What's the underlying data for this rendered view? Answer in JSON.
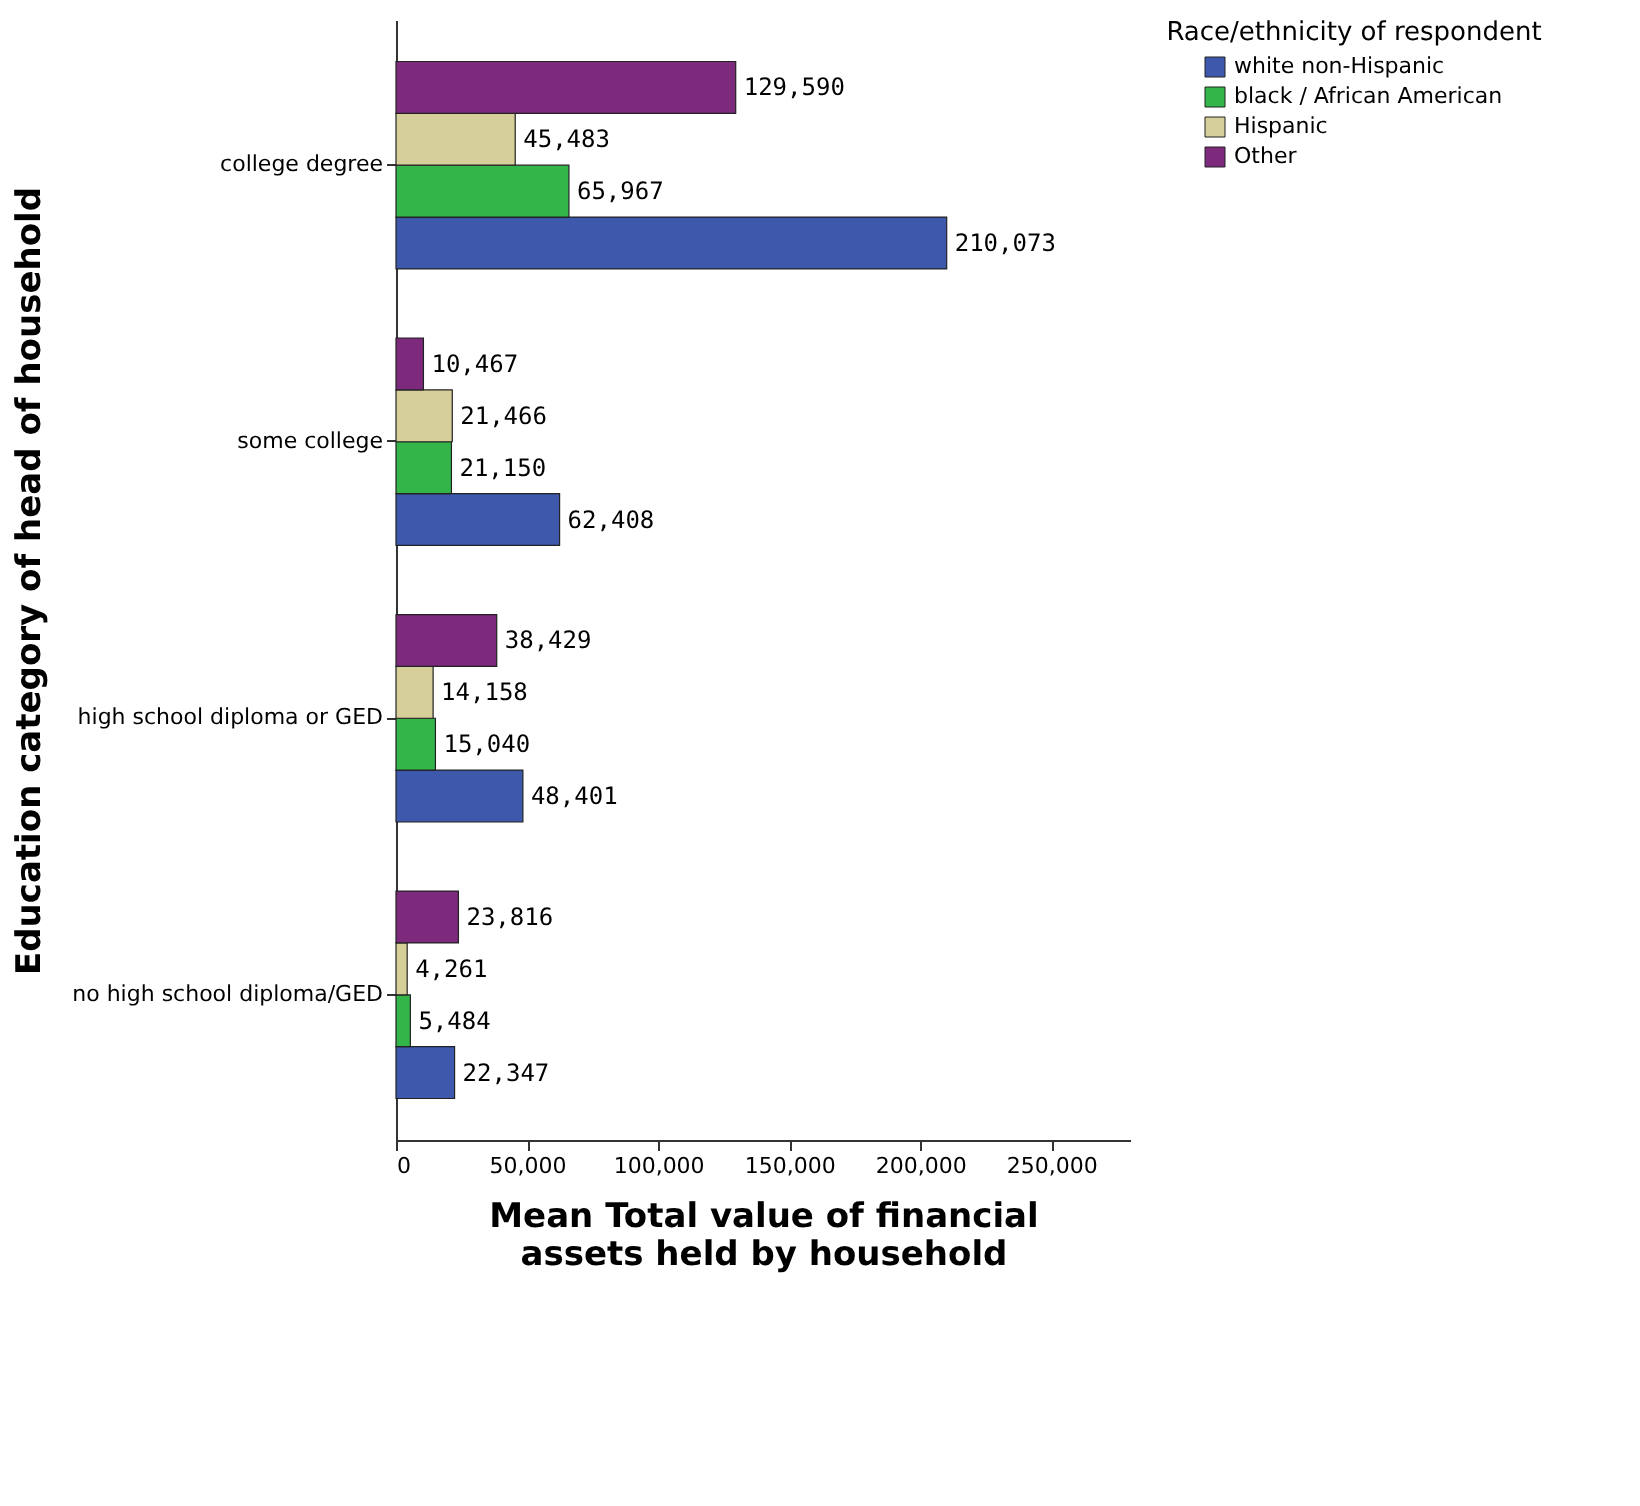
{
  "chart_data": {
    "type": "bar",
    "orientation": "horizontal",
    "xlabel": "Mean Total value of financial assets held by household",
    "ylabel": "Education category of head of household",
    "legend_title": "Race/ethnicity of respondent",
    "legend": "top right",
    "categories": [
      "college degree",
      "some college",
      "high school diploma or GED",
      "no high school diploma/GED"
    ],
    "series": [
      {
        "name": "white non-Hispanic",
        "color": "#3e58ac",
        "values": [
          210073,
          62408,
          48401,
          22347
        ],
        "value_labels": [
          "210,073",
          "62,408",
          "48,401",
          "22,347"
        ]
      },
      {
        "name": "black / African American",
        "color": "#33b54a",
        "values": [
          65967,
          21150,
          15040,
          5484
        ],
        "value_labels": [
          "65,967",
          "21,150",
          "15,040",
          "5,484"
        ]
      },
      {
        "name": "Hispanic",
        "color": "#d6cf9a",
        "values": [
          45483,
          21466,
          14158,
          4261
        ],
        "value_labels": [
          "45,483",
          "21,466",
          "14,158",
          "4,261"
        ]
      },
      {
        "name": "Other",
        "color": "#7d2a7d",
        "values": [
          129590,
          10467,
          38429,
          23816
        ],
        "value_labels": [
          "129,590",
          "10,467",
          "38,429",
          "23,816"
        ]
      }
    ],
    "xlim": [
      0,
      280000
    ],
    "xticks": [
      {
        "value": 0,
        "label": "0"
      },
      {
        "value": 50000,
        "label": "50,000"
      },
      {
        "value": 100000,
        "label": "100,000"
      },
      {
        "value": 150000,
        "label": "150,000"
      },
      {
        "value": 200000,
        "label": "200,000"
      },
      {
        "value": 250000,
        "label": "250,000"
      }
    ],
    "grid": false
  }
}
